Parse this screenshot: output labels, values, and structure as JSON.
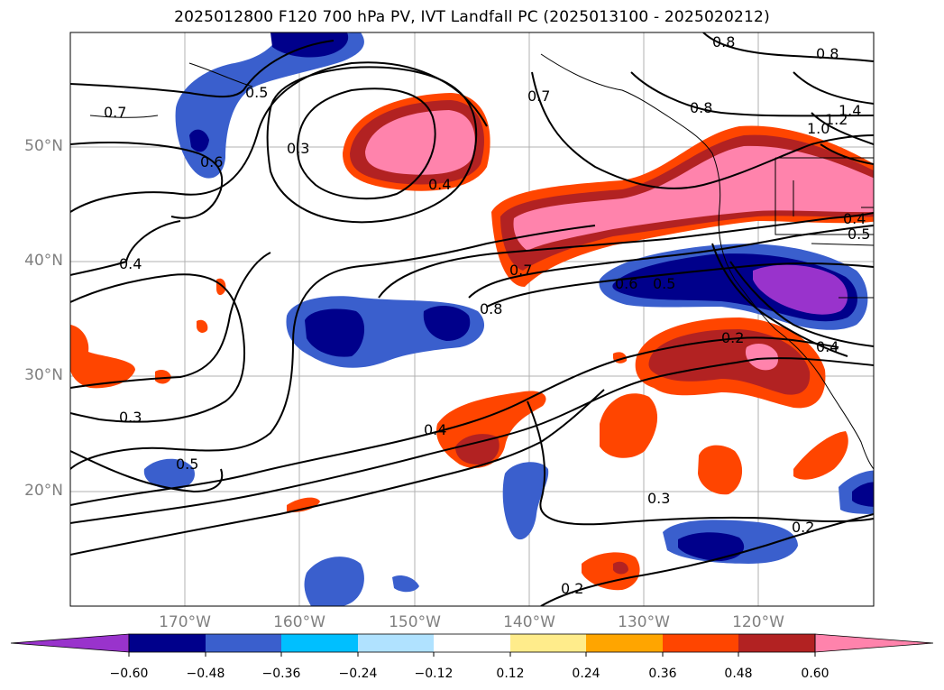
{
  "title": "2025012800 F120 700 hPa PV, IVT Landfall PC (2025013100 - 2025020212)",
  "lat_labels": [
    "50°N",
    "40°N",
    "30°N",
    "20°N"
  ],
  "lon_labels": [
    "170°W",
    "160°W",
    "150°W",
    "140°W",
    "130°W",
    "120°W"
  ],
  "colorbar": {
    "tick_labels": [
      "−0.60",
      "−0.48",
      "−0.36",
      "−0.24",
      "−0.12",
      "0.12",
      "0.24",
      "0.36",
      "0.48",
      "0.60"
    ],
    "colors": [
      "#9933cc",
      "#00008b",
      "#3a5fcd",
      "#00bfff",
      "#b0e2ff",
      "#ffffff",
      "#ffec8b",
      "#ffa500",
      "#ff4500",
      "#b22222",
      "#ff83ac"
    ]
  },
  "contour_labels": [
    "0.8",
    "0.8",
    "0.7",
    "0.8",
    "1.0",
    "1.2",
    "1.4",
    "0.7",
    "0.5",
    "0.3",
    "0.6",
    "0.4",
    "0.4",
    "0.7",
    "0.8",
    "0.6",
    "0.5",
    "0.4",
    "0.2",
    "0.4",
    "0.5",
    "0.3",
    "0.5",
    "0.4",
    "0.3",
    "0.2",
    "0.2"
  ],
  "map_extent": {
    "lon": [
      -180,
      -110
    ],
    "lat": [
      10,
      60
    ]
  }
}
